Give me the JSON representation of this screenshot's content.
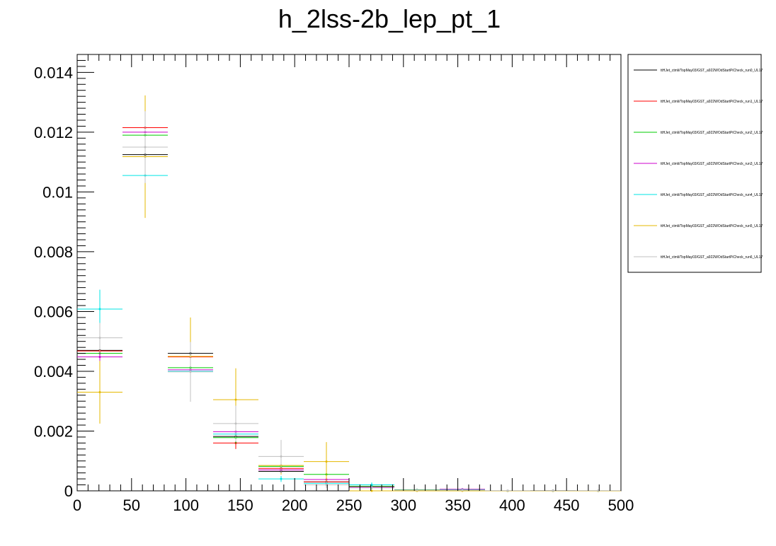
{
  "chart_data": {
    "type": "histogram",
    "title": "h_2lss-2b_lep_pt_1",
    "xlabel": "",
    "ylabel": "",
    "xlim": [
      0,
      500
    ],
    "ylim": [
      0,
      0.0146
    ],
    "grid": false,
    "legend_position": "right",
    "x_ticks": [
      0,
      50,
      100,
      150,
      200,
      250,
      300,
      350,
      400,
      450,
      500
    ],
    "x_tick_labels": [
      "0",
      "50",
      "100",
      "150",
      "200",
      "250",
      "300",
      "350",
      "400",
      "450",
      "500"
    ],
    "y_ticks": [
      0,
      0.002,
      0.004,
      0.006,
      0.008,
      0.01,
      0.012,
      0.014
    ],
    "y_tick_labels": [
      "0",
      "0.002",
      "0.004",
      "0.006",
      "0.008",
      "0.01",
      "0.012",
      "0.014"
    ],
    "bin_edges": [
      0,
      41.667,
      83.333,
      125,
      166.667,
      208.333,
      250,
      291.667,
      333.333,
      375,
      416.667,
      458.333,
      500
    ],
    "series": [
      {
        "name": "ttHJet_ctmli/TopMay03/GST_a922WOdStartPiCheck_run0_UL17",
        "color": "#000000",
        "values": [
          0.0047,
          0.01125,
          0.0046,
          0.00182,
          0.00065,
          0.0003,
          0.00015,
          3e-05,
          4e-05,
          0.0,
          1e-05,
          0.0
        ],
        "errors": [
          0.0003,
          0.0005,
          0.0003,
          0.0002,
          0.0001,
          8e-05,
          5e-05,
          2e-05,
          2e-05,
          0.0,
          1e-05,
          0.0
        ]
      },
      {
        "name": "ttHJet_ctmli/TopMay03/GST_a922WOdStartPiCheck_run1_UL17",
        "color": "#ff0000",
        "values": [
          0.00468,
          0.01215,
          0.00448,
          0.0016,
          0.00075,
          0.0003,
          0.00015,
          2e-05,
          2e-05,
          0.0,
          0.0,
          0.0
        ],
        "errors": [
          0.0003,
          0.0005,
          0.0003,
          0.0002,
          0.0001,
          8e-05,
          5e-05,
          2e-05,
          2e-05,
          0.0,
          0.0,
          0.0
        ]
      },
      {
        "name": "ttHJet_ctmli/TopMay03/GST_a922WOdStartPiCheck_run2_UL17",
        "color": "#00cc00",
        "values": [
          0.0046,
          0.0119,
          0.00412,
          0.00178,
          0.00082,
          0.00055,
          0.00015,
          3e-05,
          5e-05,
          0.0,
          0.0,
          0.0
        ],
        "errors": [
          0.0003,
          0.0005,
          0.0003,
          0.0002,
          0.0001,
          8e-05,
          5e-05,
          2e-05,
          2e-05,
          0.0,
          0.0,
          0.0
        ]
      },
      {
        "name": "ttHJet_ctmli/TopMay03/GST_a922WOdStartPiCheck_run3_UL17",
        "color": "#cc00cc",
        "values": [
          0.00448,
          0.012,
          0.00405,
          0.00198,
          0.0007,
          0.00038,
          0.00012,
          2e-05,
          5e-05,
          0.0,
          0.0,
          0.0
        ],
        "errors": [
          0.0003,
          0.0005,
          0.0003,
          0.0002,
          0.0001,
          8e-05,
          5e-05,
          2e-05,
          2e-05,
          0.0,
          0.0,
          0.0
        ]
      },
      {
        "name": "ttHJet_ctmli/TopMay03/GST_a922WOdStartPiCheck_run4_UL17",
        "color": "#00e5e5",
        "values": [
          0.00608,
          0.01055,
          0.004,
          0.0019,
          0.0004,
          0.00025,
          0.0002,
          2e-05,
          3e-05,
          0.0,
          0.0,
          0.0
        ],
        "errors": [
          0.00065,
          0.0006,
          0.0003,
          0.0002,
          0.0001,
          8e-05,
          8e-05,
          2e-05,
          2e-05,
          0.0,
          0.0,
          0.0
        ]
      },
      {
        "name": "ttHJet_ctmli/TopMay03/GST_a922WOdStartPiCheck_run5_UL17",
        "color": "#e5b800",
        "values": [
          0.0033,
          0.01118,
          0.0045,
          0.00305,
          0.00085,
          0.00098,
          0.0,
          0.0,
          0.0,
          0.0,
          0.0,
          0.0
        ],
        "errors": [
          0.00105,
          0.00205,
          0.0013,
          0.00105,
          0.0003,
          0.00065,
          0.0,
          0.0,
          0.0,
          0.0,
          0.0,
          0.0
        ]
      },
      {
        "name": "ttHJet_ctmli/TopMay03/GST_a922WOdStartPiCheck_run6_UL17",
        "color": "#c0c0c0",
        "values": [
          0.00512,
          0.0115,
          0.00398,
          0.00225,
          0.00115,
          0.0002,
          0.0001,
          2e-05,
          2e-05,
          1e-05,
          1e-05,
          1e-05
        ],
        "errors": [
          0.0005,
          0.0012,
          0.001,
          0.0006,
          0.00055,
          0.0001,
          5e-05,
          2e-05,
          2e-05,
          1e-05,
          1e-05,
          1e-05
        ]
      }
    ]
  }
}
